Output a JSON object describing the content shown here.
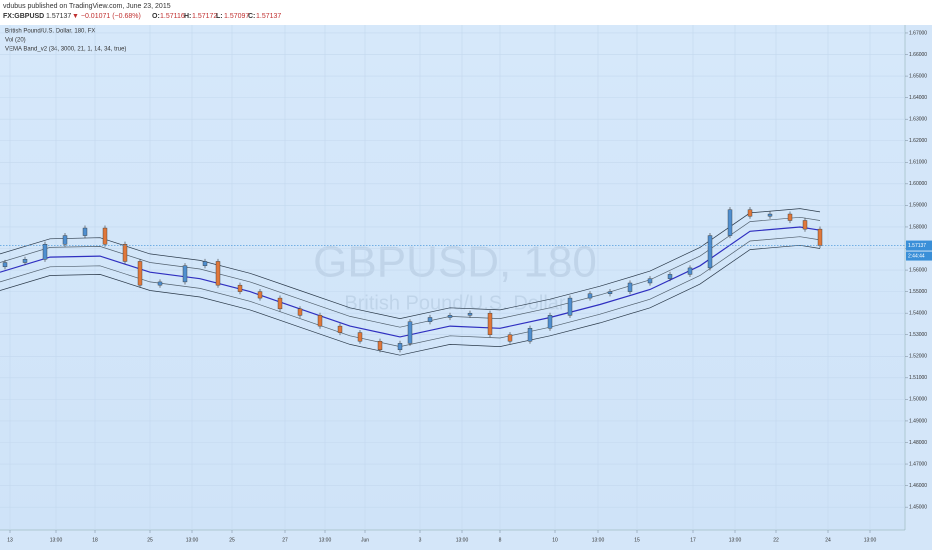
{
  "header": {
    "publisher": "vdubus published on TradingView.com, June 23, 2015",
    "symbol": "FX:GBPUSD",
    "quote": "1.57137",
    "change": "▼ −0.01071 (−0.68%)",
    "ohlc": [
      "O:",
      "1.57116",
      "H:",
      "1.57172",
      "L:",
      "1.57097",
      "C:",
      "1.57137"
    ]
  },
  "chart_data": {
    "type": "candlestick",
    "legend": [
      "British Pound/U.S. Dollar, 180, FX",
      "Vol (20)",
      "VEMA Band_v2 (34, 3000, 21, 1, 14, 34, true)"
    ],
    "watermark": "GBPUSD, 180",
    "watermark_sub": "British Pound/U.S. Dollar",
    "last_price": 1.57137,
    "countdown": "2:44:44",
    "up_color": "#4f8fd0",
    "down_color": "#e0773a",
    "x": [
      1,
      5,
      9,
      13,
      17,
      21,
      25,
      28,
      32,
      37,
      41,
      43.6,
      48,
      52,
      56,
      60,
      64,
      68,
      72,
      76,
      80,
      82,
      86,
      90,
      94,
      98,
      102,
      106,
      110,
      114,
      118,
      122,
      126,
      130,
      134,
      138,
      142,
      146,
      150,
      154,
      158,
      161,
      164
    ],
    "open": [
      1.5615,
      1.5635,
      1.565,
      1.572,
      1.576,
      1.5795,
      1.572,
      1.564,
      1.553,
      1.5545,
      1.562,
      1.564,
      1.553,
      1.55,
      1.547,
      1.542,
      1.539,
      1.534,
      1.531,
      1.527,
      1.523,
      1.526,
      1.536,
      1.538,
      1.539,
      1.54,
      1.53,
      1.527,
      1.533,
      1.539,
      1.547,
      1.549,
      1.55,
      1.554,
      1.556,
      1.558,
      1.561,
      1.576,
      1.588,
      1.585,
      1.586,
      1.583,
      1.579
    ],
    "high": [
      1.5647,
      1.5662,
      1.5732,
      1.5772,
      1.5807,
      1.5807,
      1.5732,
      1.5652,
      1.5557,
      1.5632,
      1.5652,
      1.5652,
      1.5542,
      1.5512,
      1.5482,
      1.5432,
      1.5402,
      1.5352,
      1.5322,
      1.5282,
      1.5272,
      1.5372,
      1.5392,
      1.5402,
      1.5412,
      1.5412,
      1.5312,
      1.5342,
      1.5402,
      1.5482,
      1.5502,
      1.5512,
      1.5552,
      1.5572,
      1.5592,
      1.5622,
      1.5772,
      1.5892,
      1.5892,
      1.5872,
      1.5872,
      1.5842,
      1.5802
    ],
    "low": [
      1.5603,
      1.5623,
      1.5638,
      1.5708,
      1.5748,
      1.5708,
      1.5628,
      1.5518,
      1.5518,
      1.5533,
      1.5608,
      1.5518,
      1.5488,
      1.5458,
      1.5408,
      1.5378,
      1.5328,
      1.5298,
      1.5258,
      1.5218,
      1.5218,
      1.5248,
      1.5348,
      1.5368,
      1.5378,
      1.5288,
      1.5258,
      1.5258,
      1.5318,
      1.5378,
      1.5458,
      1.5478,
      1.5488,
      1.5528,
      1.5548,
      1.5568,
      1.5598,
      1.5748,
      1.5838,
      1.5838,
      1.5818,
      1.5778,
      1.5702
    ],
    "close": [
      1.5635,
      1.565,
      1.572,
      1.576,
      1.5795,
      1.572,
      1.564,
      1.553,
      1.5545,
      1.562,
      1.564,
      1.553,
      1.55,
      1.547,
      1.542,
      1.539,
      1.534,
      1.531,
      1.527,
      1.523,
      1.526,
      1.536,
      1.538,
      1.539,
      1.54,
      1.53,
      1.527,
      1.533,
      1.539,
      1.547,
      1.549,
      1.55,
      1.554,
      1.556,
      1.558,
      1.561,
      1.576,
      1.588,
      1.585,
      1.586,
      1.583,
      1.579,
      1.5714
    ],
    "bands": {
      "x": [
        0,
        10,
        20,
        30,
        40,
        50,
        60,
        70,
        80,
        90,
        100,
        110,
        120,
        130,
        140,
        150,
        160,
        164
      ],
      "series": [
        {
          "color": "#2b3a4a",
          "values": [
            1.5675,
            1.5745,
            1.575,
            1.5675,
            1.5645,
            1.5585,
            1.5505,
            1.5425,
            1.5375,
            1.5425,
            1.5415,
            1.5465,
            1.5525,
            1.5595,
            1.5705,
            1.5865,
            1.5885,
            1.587
          ]
        },
        {
          "color": "#51606e",
          "values": [
            1.5635,
            1.5705,
            1.571,
            1.5635,
            1.5605,
            1.5545,
            1.5465,
            1.5385,
            1.5335,
            1.5385,
            1.5375,
            1.5425,
            1.5485,
            1.5555,
            1.5665,
            1.5825,
            1.5845,
            1.583
          ]
        },
        {
          "color": "#2f2fc0",
          "values": [
            1.559,
            1.566,
            1.5665,
            1.559,
            1.556,
            1.55,
            1.542,
            1.534,
            1.529,
            1.534,
            1.533,
            1.538,
            1.544,
            1.551,
            1.562,
            1.578,
            1.58,
            1.5785
          ]
        },
        {
          "color": "#51606e",
          "values": [
            1.5545,
            1.5615,
            1.562,
            1.5545,
            1.5515,
            1.5455,
            1.5375,
            1.5295,
            1.5245,
            1.5295,
            1.5285,
            1.5335,
            1.5395,
            1.5465,
            1.5575,
            1.5735,
            1.5755,
            1.574
          ]
        },
        {
          "color": "#2b3a4a",
          "values": [
            1.5505,
            1.5575,
            1.558,
            1.5505,
            1.5475,
            1.5415,
            1.5335,
            1.5255,
            1.5205,
            1.5255,
            1.5245,
            1.5295,
            1.5355,
            1.5425,
            1.5535,
            1.5695,
            1.5715,
            1.57
          ]
        }
      ]
    },
    "xlim": [
      0,
      181
    ],
    "ylim": [
      1.4394,
      1.6737
    ],
    "xticks": [
      {
        "value": 2,
        "label": "13"
      },
      {
        "value": 11.2,
        "label": "13:00"
      },
      {
        "value": 19,
        "label": "18"
      },
      {
        "value": 30,
        "label": "25"
      },
      {
        "value": 38.4,
        "label": "13:00"
      },
      {
        "value": 46.4,
        "label": "25"
      },
      {
        "value": 57,
        "label": "27"
      },
      {
        "value": 65,
        "label": "13:00"
      },
      {
        "value": 73,
        "label": "Jun"
      },
      {
        "value": 84,
        "label": "3"
      },
      {
        "value": 92.4,
        "label": "13:00"
      },
      {
        "value": 100,
        "label": "8"
      },
      {
        "value": 111,
        "label": "10"
      },
      {
        "value": 119.6,
        "label": "13:00"
      },
      {
        "value": 127.4,
        "label": "15"
      },
      {
        "value": 138.6,
        "label": "17"
      },
      {
        "value": 147,
        "label": "13:00"
      },
      {
        "value": 155.2,
        "label": "22"
      },
      {
        "value": 165.6,
        "label": "24"
      },
      {
        "value": 174,
        "label": "13:00"
      }
    ],
    "yticks": [
      {
        "value": 1.45,
        "label": "1.45000"
      },
      {
        "value": 1.46,
        "label": "1.46000"
      },
      {
        "value": 1.47,
        "label": "1.47000"
      },
      {
        "value": 1.48,
        "label": "1.48000"
      },
      {
        "value": 1.49,
        "label": "1.49000"
      },
      {
        "value": 1.5,
        "label": "1.50000"
      },
      {
        "value": 1.51,
        "label": "1.51000"
      },
      {
        "value": 1.52,
        "label": "1.52000"
      },
      {
        "value": 1.53,
        "label": "1.53000"
      },
      {
        "value": 1.54,
        "label": "1.54000"
      },
      {
        "value": 1.55,
        "label": "1.55000"
      },
      {
        "value": 1.56,
        "label": "1.56000"
      },
      {
        "value": 1.57,
        "label": "1.57000"
      },
      {
        "value": 1.58,
        "label": "1.58000"
      },
      {
        "value": 1.59,
        "label": "1.59000"
      },
      {
        "value": 1.6,
        "label": "1.60000"
      },
      {
        "value": 1.61,
        "label": "1.61000"
      },
      {
        "value": 1.62,
        "label": "1.62000"
      },
      {
        "value": 1.63,
        "label": "1.63000"
      },
      {
        "value": 1.64,
        "label": "1.64000"
      },
      {
        "value": 1.65,
        "label": "1.65000"
      },
      {
        "value": 1.66,
        "label": "1.66000"
      },
      {
        "value": 1.67,
        "label": "1.67000"
      }
    ],
    "grid": true
  }
}
